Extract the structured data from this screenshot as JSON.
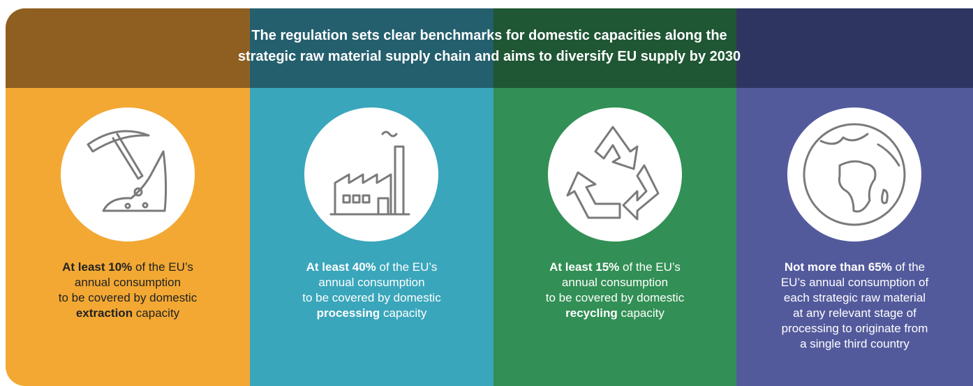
{
  "header": {
    "title": [
      "The regulation sets clear benchmarks for domestic capacities along the",
      "strategic raw material supply chain and aims to diversify EU supply by 2030"
    ]
  },
  "panels": [
    {
      "lines": [
        [
          {
            "text": "At least 10%",
            "bold": true
          },
          {
            "text": " of the EU’s"
          }
        ],
        [
          {
            "text": "annual consumption"
          }
        ],
        [
          {
            "text": "to be covered by domestic"
          }
        ],
        [
          {
            "text": "extraction",
            "bold": true
          },
          {
            "text": " capacity"
          }
        ]
      ]
    },
    {
      "lines": [
        [
          {
            "text": "At least 40%",
            "bold": true
          },
          {
            "text": " of the EU’s"
          }
        ],
        [
          {
            "text": "annual consumption"
          }
        ],
        [
          {
            "text": "to be covered by domestic"
          }
        ],
        [
          {
            "text": "processing",
            "bold": true
          },
          {
            "text": " capacity"
          }
        ]
      ]
    },
    {
      "lines": [
        [
          {
            "text": "At least 15%",
            "bold": true
          },
          {
            "text": " of the EU’s"
          }
        ],
        [
          {
            "text": "annual consumption"
          }
        ],
        [
          {
            "text": "to be covered by domestic"
          }
        ],
        [
          {
            "text": "recycling",
            "bold": true
          },
          {
            "text": " capacity"
          }
        ]
      ]
    },
    {
      "lines": [
        [
          {
            "text": "Not more than 65%",
            "bold": true
          },
          {
            "text": " of the"
          }
        ],
        [
          {
            "text": "EU’s annual consumption of"
          }
        ],
        [
          {
            "text": "each strategic raw material"
          }
        ],
        [
          {
            "text": "at any relevant stage of"
          }
        ],
        [
          {
            "text": "processing to originate from"
          }
        ],
        [
          {
            "text": "a single third country"
          }
        ]
      ]
    }
  ]
}
